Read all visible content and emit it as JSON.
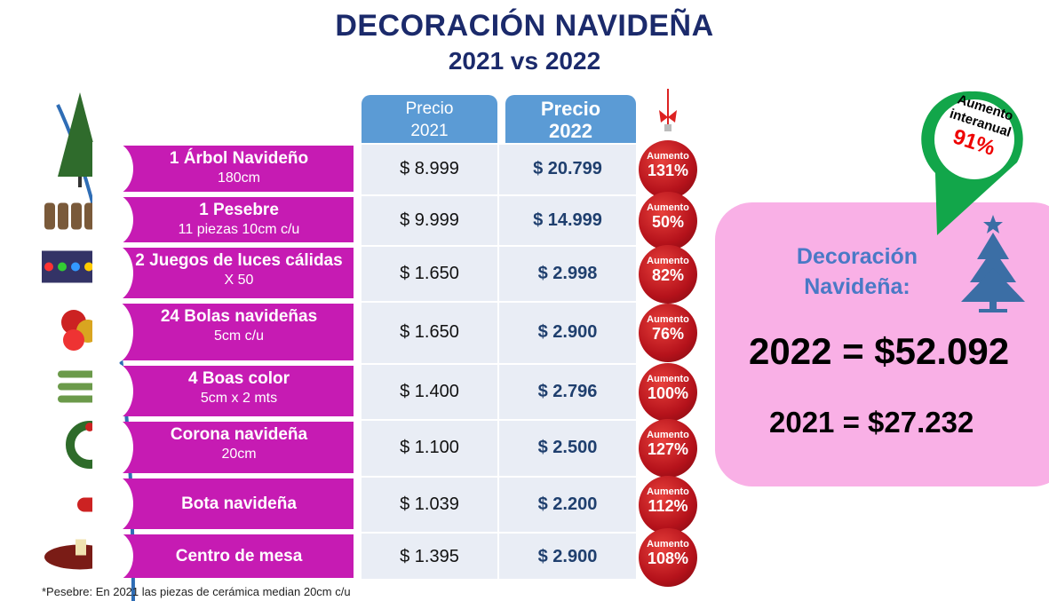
{
  "title": "DECORACIÓN NAVIDEÑA",
  "subtitle": "2021 vs 2022",
  "headers": {
    "p2021": [
      "Precio",
      "2021"
    ],
    "p2022": [
      "Precio",
      "2022"
    ]
  },
  "increase_label": "Aumento",
  "rows": [
    {
      "name": "1 Árbol Navideño",
      "detail": "180cm",
      "p2021": "$ 8.999",
      "p2022": "$ 20.799",
      "increase": "131%",
      "icon": "christmas-tree-image"
    },
    {
      "name": "1 Pesebre",
      "detail": "11 piezas 10cm c/u",
      "p2021": "$ 9.999",
      "p2022": "$ 14.999",
      "increase": "50%",
      "icon": "nativity-scene-image"
    },
    {
      "name": "2 Juegos de luces cálidas",
      "detail": "X 50",
      "p2021": "$ 1.650",
      "p2022": "$ 2.998",
      "increase": "82%",
      "icon": "christmas-lights-image"
    },
    {
      "name": "24 Bolas navideñas",
      "detail": "5cm c/u",
      "p2021": "$ 1.650",
      "p2022": "$ 2.900",
      "increase": "76%",
      "icon": "ornament-balls-image"
    },
    {
      "name": "4 Boas color",
      "detail": "5cm x 2 mts",
      "p2021": "$ 1.400",
      "p2022": "$ 2.796",
      "increase": "100%",
      "icon": "garland-image"
    },
    {
      "name": "Corona navideña",
      "detail": "20cm",
      "p2021": "$ 1.100",
      "p2022": "$ 2.500",
      "increase": "127%",
      "icon": "wreath-image"
    },
    {
      "name": "Bota navideña",
      "detail": "",
      "p2021": "$ 1.039",
      "p2022": "$ 2.200",
      "increase": "112%",
      "icon": "stocking-image"
    },
    {
      "name": "Centro de mesa",
      "detail": "",
      "p2021": "$ 1.395",
      "p2022": "$ 2.900",
      "increase": "108%",
      "icon": "centerpiece-image"
    }
  ],
  "summary": {
    "label": "Decoración Navideña:",
    "total_2022": "2022 = $52.092",
    "total_2021": "2021 = $27.232"
  },
  "pin": {
    "label1": "Aumento",
    "label2": "interanual",
    "value": "91%"
  },
  "footnote": "*Pesebre: En 2021 las piezas de cerámica median 20cm c/u",
  "colors": {
    "magenta": "#c61bb3",
    "header_blue": "#5b9bd5",
    "title_navy": "#1b2a6b",
    "pink_box": "#f9b0e6",
    "pin_green": "#12a64a",
    "ornament_red": "#b5121b"
  }
}
